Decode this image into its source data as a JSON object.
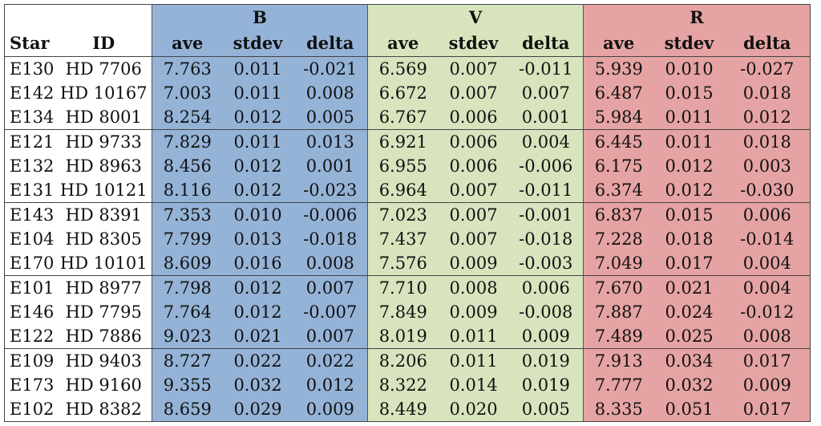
{
  "header": {
    "bands": [
      "B",
      "V",
      "R"
    ],
    "star_label": "Star",
    "id_label": "ID",
    "sub_cols": [
      "ave",
      "stdev",
      "delta"
    ]
  },
  "rows": [
    {
      "star": "E130",
      "id": "HD 7706",
      "B": [
        "7.763",
        "0.011",
        "-0.021"
      ],
      "V": [
        "6.569",
        "0.007",
        "-0.011"
      ],
      "R": [
        "5.939",
        "0.010",
        "-0.027"
      ]
    },
    {
      "star": "E142",
      "id": "HD 10167",
      "B": [
        "7.003",
        "0.011",
        "0.008"
      ],
      "V": [
        "6.672",
        "0.007",
        "0.007"
      ],
      "R": [
        "6.487",
        "0.015",
        "0.018"
      ]
    },
    {
      "star": "E134",
      "id": "HD 8001",
      "B": [
        "8.254",
        "0.012",
        "0.005"
      ],
      "V": [
        "6.767",
        "0.006",
        "0.001"
      ],
      "R": [
        "5.984",
        "0.011",
        "0.012"
      ]
    },
    {
      "star": "E121",
      "id": "HD 9733",
      "B": [
        "7.829",
        "0.011",
        "0.013"
      ],
      "V": [
        "6.921",
        "0.006",
        "0.004"
      ],
      "R": [
        "6.445",
        "0.011",
        "0.018"
      ]
    },
    {
      "star": "E132",
      "id": "HD 8963",
      "B": [
        "8.456",
        "0.012",
        "0.001"
      ],
      "V": [
        "6.955",
        "0.006",
        "-0.006"
      ],
      "R": [
        "6.175",
        "0.012",
        "0.003"
      ]
    },
    {
      "star": "E131",
      "id": "HD 10121",
      "B": [
        "8.116",
        "0.012",
        "-0.023"
      ],
      "V": [
        "6.964",
        "0.007",
        "-0.011"
      ],
      "R": [
        "6.374",
        "0.012",
        "-0.030"
      ]
    },
    {
      "star": "E143",
      "id": "HD 8391",
      "B": [
        "7.353",
        "0.010",
        "-0.006"
      ],
      "V": [
        "7.023",
        "0.007",
        "-0.001"
      ],
      "R": [
        "6.837",
        "0.015",
        "0.006"
      ]
    },
    {
      "star": "E104",
      "id": "HD 8305",
      "B": [
        "7.799",
        "0.013",
        "-0.018"
      ],
      "V": [
        "7.437",
        "0.007",
        "-0.018"
      ],
      "R": [
        "7.228",
        "0.018",
        "-0.014"
      ]
    },
    {
      "star": "E170",
      "id": "HD 10101",
      "B": [
        "8.609",
        "0.016",
        "0.008"
      ],
      "V": [
        "7.576",
        "0.009",
        "-0.003"
      ],
      "R": [
        "7.049",
        "0.017",
        "0.004"
      ]
    },
    {
      "star": "E101",
      "id": "HD 8977",
      "B": [
        "7.798",
        "0.012",
        "0.007"
      ],
      "V": [
        "7.710",
        "0.008",
        "0.006"
      ],
      "R": [
        "7.670",
        "0.021",
        "0.004"
      ]
    },
    {
      "star": "E146",
      "id": "HD 7795",
      "B": [
        "7.764",
        "0.012",
        "-0.007"
      ],
      "V": [
        "7.849",
        "0.009",
        "-0.008"
      ],
      "R": [
        "7.887",
        "0.024",
        "-0.012"
      ]
    },
    {
      "star": "E122",
      "id": "HD 7886",
      "B": [
        "9.023",
        "0.021",
        "0.007"
      ],
      "V": [
        "8.019",
        "0.011",
        "0.009"
      ],
      "R": [
        "7.489",
        "0.025",
        "0.008"
      ]
    },
    {
      "star": "E109",
      "id": "HD 9403",
      "B": [
        "8.727",
        "0.022",
        "0.022"
      ],
      "V": [
        "8.206",
        "0.011",
        "0.019"
      ],
      "R": [
        "7.913",
        "0.034",
        "0.017"
      ]
    },
    {
      "star": "E173",
      "id": "HD 9160",
      "B": [
        "9.355",
        "0.032",
        "0.012"
      ],
      "V": [
        "8.322",
        "0.014",
        "0.019"
      ],
      "R": [
        "7.777",
        "0.032",
        "0.009"
      ]
    },
    {
      "star": "E102",
      "id": "HD 8382",
      "B": [
        "8.659",
        "0.029",
        "0.009"
      ],
      "V": [
        "8.449",
        "0.020",
        "0.005"
      ],
      "R": [
        "8.335",
        "0.051",
        "0.017"
      ]
    }
  ],
  "colors": {
    "B": "#95b3d7",
    "V": "#d7e4bd",
    "R": "#e6a3a3"
  }
}
